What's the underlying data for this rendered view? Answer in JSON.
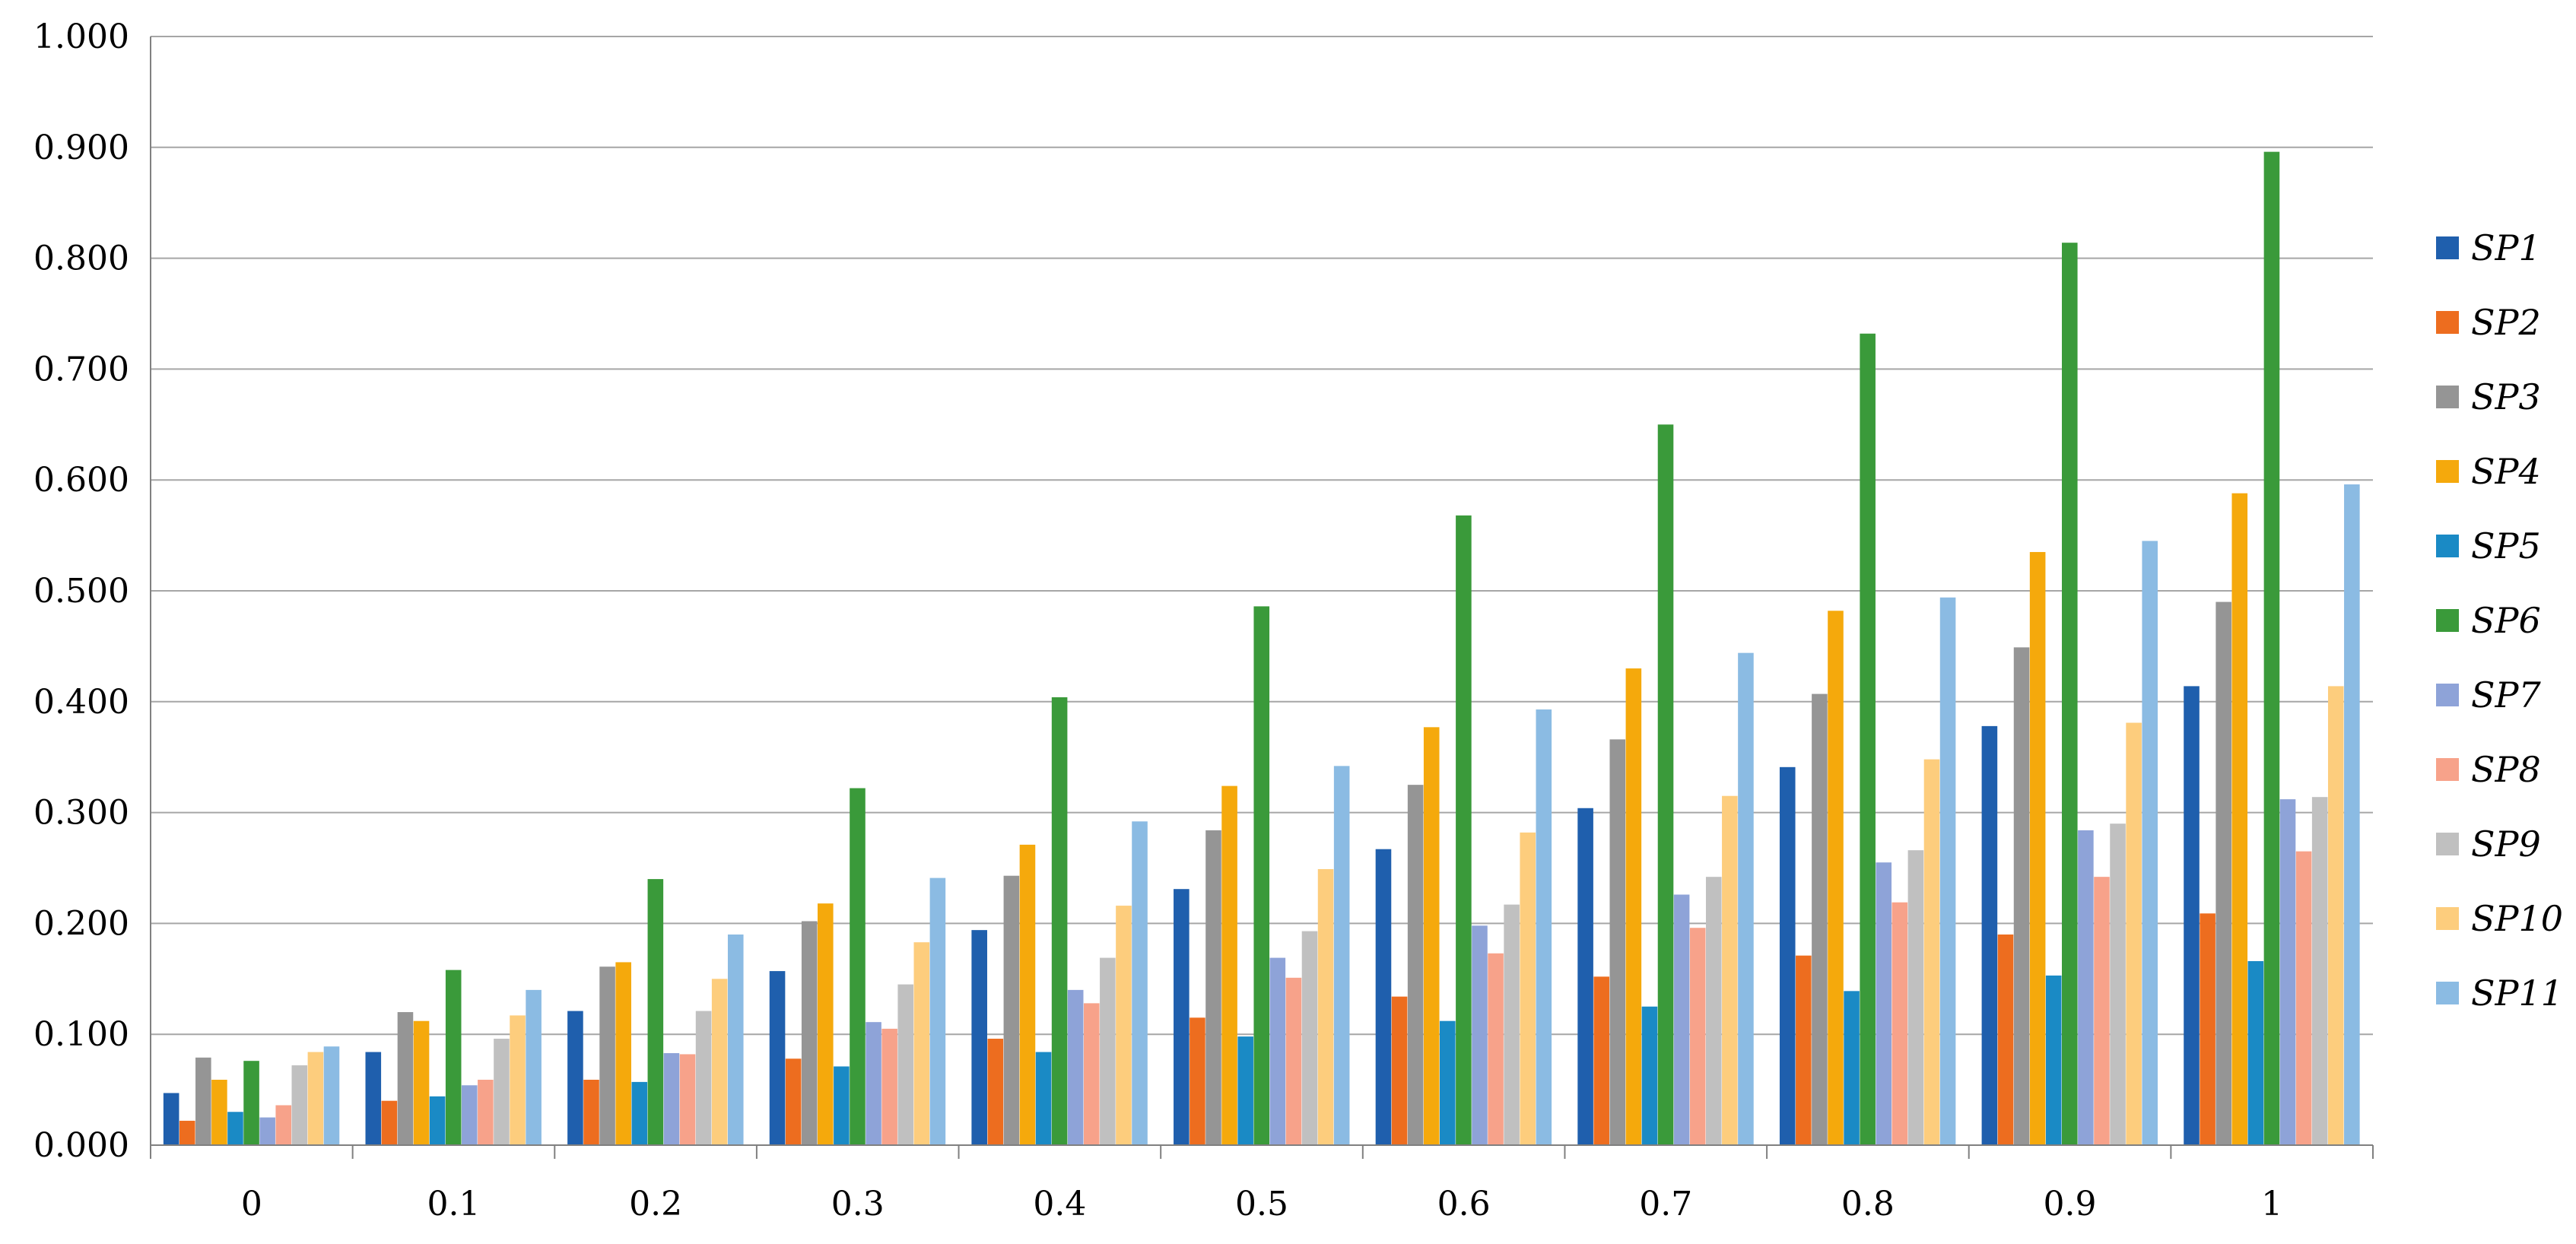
{
  "chart_data": {
    "type": "bar",
    "title": "",
    "xlabel": "",
    "ylabel": "",
    "categories": [
      "0",
      "0.1",
      "0.2",
      "0.3",
      "0.4",
      "0.5",
      "0.6",
      "0.7",
      "0.8",
      "0.9",
      "1"
    ],
    "yticks": [
      "0.000",
      "0.100",
      "0.200",
      "0.300",
      "0.400",
      "0.500",
      "0.600",
      "0.700",
      "0.800",
      "0.900",
      "1.000"
    ],
    "ylim": [
      0,
      1
    ],
    "grid": true,
    "legend_position": "right",
    "series": [
      {
        "name": "SP1",
        "color": "#1f5fad",
        "values": [
          0.047,
          0.084,
          0.121,
          0.157,
          0.194,
          0.231,
          0.267,
          0.304,
          0.341,
          0.378,
          0.414
        ]
      },
      {
        "name": "SP2",
        "color": "#ed6d1f",
        "values": [
          0.022,
          0.04,
          0.059,
          0.078,
          0.096,
          0.115,
          0.134,
          0.152,
          0.171,
          0.19,
          0.209
        ]
      },
      {
        "name": "SP3",
        "color": "#959595",
        "values": [
          0.079,
          0.12,
          0.161,
          0.202,
          0.243,
          0.284,
          0.325,
          0.366,
          0.407,
          0.449,
          0.49
        ]
      },
      {
        "name": "SP4",
        "color": "#f5a90c",
        "values": [
          0.059,
          0.112,
          0.165,
          0.218,
          0.271,
          0.324,
          0.377,
          0.43,
          0.482,
          0.535,
          0.588
        ]
      },
      {
        "name": "SP5",
        "color": "#1a8ac5",
        "values": [
          0.03,
          0.044,
          0.057,
          0.071,
          0.084,
          0.098,
          0.112,
          0.125,
          0.139,
          0.153,
          0.166
        ]
      },
      {
        "name": "SP6",
        "color": "#3a9a3a",
        "values": [
          0.076,
          0.158,
          0.24,
          0.322,
          0.404,
          0.486,
          0.568,
          0.65,
          0.732,
          0.814,
          0.896
        ]
      },
      {
        "name": "SP7",
        "color": "#8ea3d8",
        "values": [
          0.025,
          0.054,
          0.083,
          0.111,
          0.14,
          0.169,
          0.198,
          0.226,
          0.255,
          0.284,
          0.312
        ]
      },
      {
        "name": "SP8",
        "color": "#f7a28a",
        "values": [
          0.036,
          0.059,
          0.082,
          0.105,
          0.128,
          0.151,
          0.173,
          0.196,
          0.219,
          0.242,
          0.265
        ]
      },
      {
        "name": "SP9",
        "color": "#c0c0c0",
        "values": [
          0.072,
          0.096,
          0.121,
          0.145,
          0.169,
          0.193,
          0.217,
          0.242,
          0.266,
          0.29,
          0.314
        ]
      },
      {
        "name": "SP10",
        "color": "#fdcd7d",
        "values": [
          0.084,
          0.117,
          0.15,
          0.183,
          0.216,
          0.249,
          0.282,
          0.315,
          0.348,
          0.381,
          0.414
        ]
      },
      {
        "name": "SP11",
        "color": "#8bbbe3",
        "values": [
          0.089,
          0.14,
          0.19,
          0.241,
          0.292,
          0.342,
          0.393,
          0.444,
          0.494,
          0.545,
          0.596
        ]
      }
    ]
  }
}
